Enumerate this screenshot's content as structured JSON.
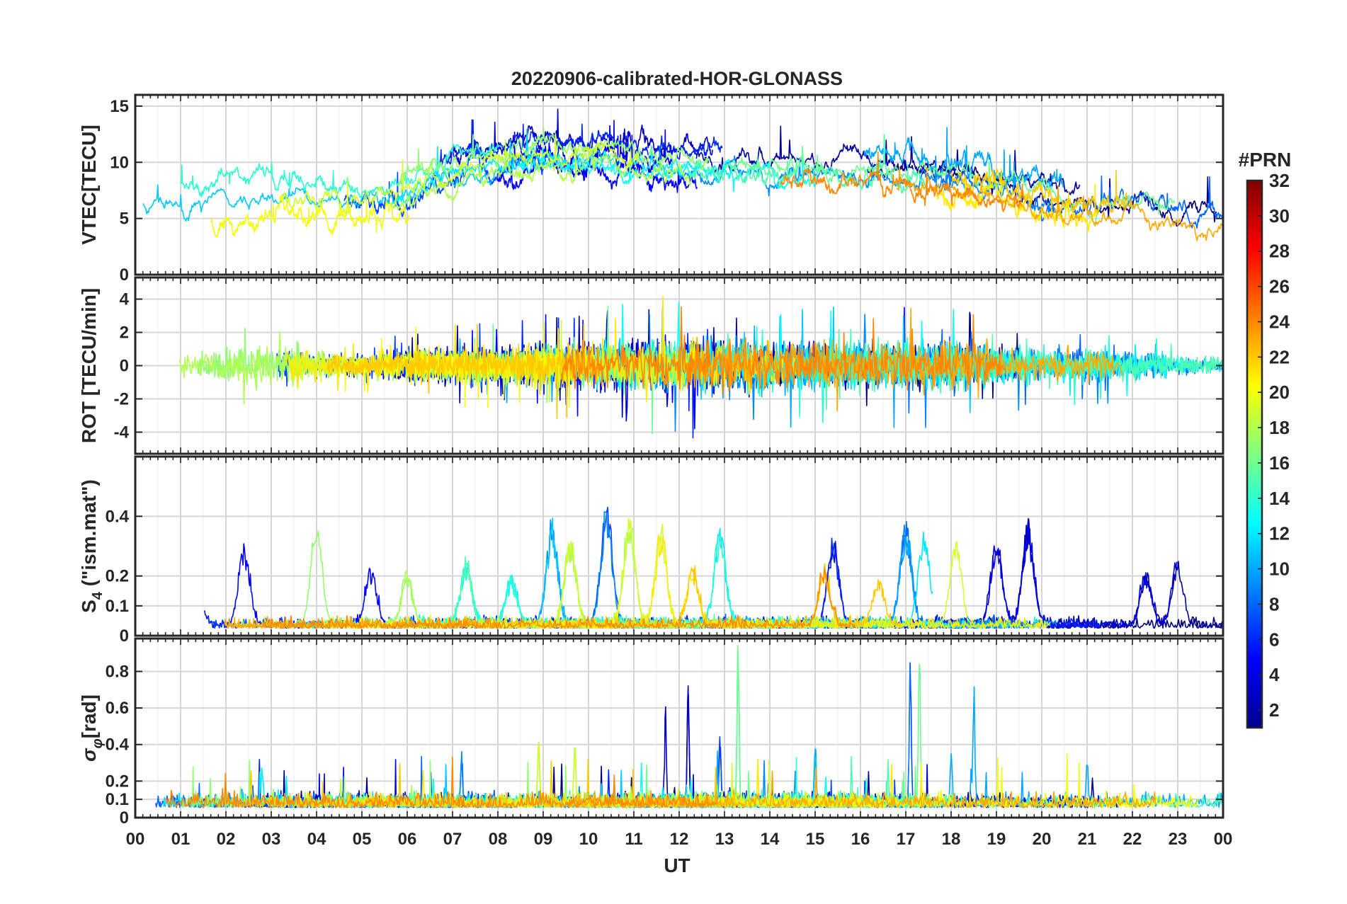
{
  "chart_data": {
    "type": "line",
    "title": "20220906-calibrated-HOR-GLONASS",
    "xlabel": "UT",
    "x_tick_labels": [
      "00",
      "01",
      "02",
      "03",
      "04",
      "05",
      "06",
      "07",
      "08",
      "09",
      "10",
      "11",
      "12",
      "13",
      "14",
      "15",
      "16",
      "17",
      "18",
      "19",
      "20",
      "21",
      "22",
      "23",
      "00"
    ],
    "xlim": [
      0,
      24
    ],
    "colorbar": {
      "label": "#PRN",
      "range": [
        1,
        32
      ],
      "tick_labels": [
        "2",
        "4",
        "6",
        "8",
        "10",
        "12",
        "14",
        "16",
        "18",
        "20",
        "22",
        "24",
        "26",
        "28",
        "30",
        "32"
      ],
      "colormap": "jet"
    },
    "series_prn": [
      1,
      2,
      3,
      4,
      5,
      6,
      7,
      8,
      9,
      10,
      11,
      12,
      13,
      14,
      15,
      16,
      17,
      18,
      19,
      20,
      21,
      22,
      23,
      24
    ],
    "panels": [
      {
        "name": "vtec",
        "ylabel": "VTEC[TECU]",
        "ylim": [
          0,
          16
        ],
        "y_ticks": [
          0,
          5,
          10,
          15
        ],
        "y_tick_labels": [
          "0",
          "5",
          "10",
          "15"
        ],
        "baseline": [
          [
            0,
            6.2
          ],
          [
            1,
            6.3
          ],
          [
            2,
            6.8
          ],
          [
            3,
            7.0
          ],
          [
            4,
            6.6
          ],
          [
            5,
            6.4
          ],
          [
            6,
            7.4
          ],
          [
            7,
            8.8
          ],
          [
            8,
            10.0
          ],
          [
            9,
            10.6
          ],
          [
            10,
            10.4
          ],
          [
            11,
            10.1
          ],
          [
            12,
            9.7
          ],
          [
            13,
            9.6
          ],
          [
            14,
            9.8
          ],
          [
            15,
            9.6
          ],
          [
            16,
            9.5
          ],
          [
            17,
            9.3
          ],
          [
            18,
            8.7
          ],
          [
            19,
            8.0
          ],
          [
            20,
            7.0
          ],
          [
            21,
            6.4
          ],
          [
            22,
            6.3
          ],
          [
            23,
            6.0
          ],
          [
            24,
            5.8
          ]
        ]
      },
      {
        "name": "rot",
        "ylabel": "ROT [TECU/min]",
        "ylim": [
          -5.3,
          5.3
        ],
        "y_ticks": [
          -4,
          -2,
          0,
          2,
          4
        ],
        "y_tick_labels": [
          "-4",
          "-2",
          "0",
          "2",
          "4"
        ],
        "activity": [
          [
            0,
            0.5
          ],
          [
            1,
            0.7
          ],
          [
            2,
            1.0
          ],
          [
            3,
            1.4
          ],
          [
            4,
            0.8
          ],
          [
            5,
            0.6
          ],
          [
            6,
            0.9
          ],
          [
            7,
            1.0
          ],
          [
            8,
            1.0
          ],
          [
            9,
            1.2
          ],
          [
            10,
            1.3
          ],
          [
            11,
            1.5
          ],
          [
            12,
            1.7
          ],
          [
            13,
            1.7
          ],
          [
            14,
            1.6
          ],
          [
            15,
            1.4
          ],
          [
            16,
            1.3
          ],
          [
            17,
            1.5
          ],
          [
            18,
            1.4
          ],
          [
            19,
            1.1
          ],
          [
            20,
            1.0
          ],
          [
            21,
            1.0
          ],
          [
            22,
            0.8
          ],
          [
            23,
            0.6
          ],
          [
            24,
            0.5
          ]
        ]
      },
      {
        "name": "s4",
        "ylabel": "S",
        "ylabel_sub": "4",
        "ylabel_suffix": " (\"ism.mat\")",
        "ylim": [
          0,
          0.6
        ],
        "y_ticks": [
          0,
          0.1,
          0.2,
          0.4
        ],
        "y_tick_labels": [
          "0",
          "0.1",
          "0.2",
          "0.4"
        ],
        "events": [
          [
            0.9,
            0.26,
            3
          ],
          [
            1.3,
            0.33,
            6
          ],
          [
            2.4,
            0.28,
            5
          ],
          [
            3.4,
            0.2,
            9
          ],
          [
            4.0,
            0.36,
            16
          ],
          [
            4.5,
            0.27,
            15
          ],
          [
            5.2,
            0.2,
            4
          ],
          [
            6.0,
            0.18,
            17
          ],
          [
            7.3,
            0.22,
            14
          ],
          [
            8.3,
            0.17,
            13
          ],
          [
            9.2,
            0.35,
            10
          ],
          [
            9.6,
            0.3,
            18
          ],
          [
            10.4,
            0.42,
            8
          ],
          [
            10.9,
            0.38,
            19
          ],
          [
            11.6,
            0.33,
            20
          ],
          [
            12.3,
            0.2,
            21
          ],
          [
            12.9,
            0.33,
            13
          ],
          [
            15.2,
            0.2,
            23
          ],
          [
            15.4,
            0.3,
            5
          ],
          [
            16.4,
            0.17,
            23
          ],
          [
            17.0,
            0.35,
            9
          ],
          [
            17.4,
            0.33,
            12
          ],
          [
            18.1,
            0.29,
            19
          ],
          [
            18.5,
            0.22,
            23
          ],
          [
            19.0,
            0.3,
            4
          ],
          [
            19.7,
            0.35,
            3
          ],
          [
            20.2,
            0.28,
            16
          ],
          [
            20.9,
            0.26,
            18
          ],
          [
            21.3,
            0.3,
            11
          ],
          [
            22.3,
            0.18,
            3
          ],
          [
            23.0,
            0.22,
            3
          ]
        ]
      },
      {
        "name": "sigma_phi",
        "ylabel": "σ",
        "ylabel_sub": "φ",
        "ylabel_suffix": "[rad]",
        "ylim": [
          0,
          0.98
        ],
        "y_ticks": [
          0,
          0.1,
          0.2,
          0.4,
          0.6,
          0.8
        ],
        "y_tick_labels": [
          "0",
          "0.1",
          "0.2",
          "0.4",
          "0.6",
          "0.8"
        ],
        "events": [
          [
            2.8,
            0.24,
            12
          ],
          [
            7.2,
            0.3,
            8
          ],
          [
            8.9,
            0.37,
            18
          ],
          [
            9.7,
            0.33,
            19
          ],
          [
            11.7,
            0.53,
            4
          ],
          [
            12.2,
            0.72,
            3
          ],
          [
            12.9,
            0.42,
            6
          ],
          [
            13.3,
            0.98,
            15
          ],
          [
            15.0,
            0.35,
            10
          ],
          [
            17.1,
            0.85,
            8
          ],
          [
            17.3,
            0.98,
            17
          ],
          [
            18.0,
            0.3,
            9
          ],
          [
            18.5,
            0.7,
            9
          ],
          [
            21.0,
            0.3,
            11
          ]
        ]
      }
    ]
  }
}
